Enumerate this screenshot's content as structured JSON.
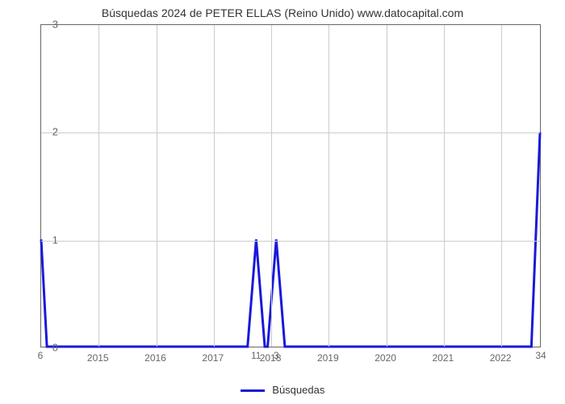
{
  "chart": {
    "type": "line",
    "title": "Búsquedas 2024 de PETER ELLAS (Reino Unido) www.datocapital.com",
    "title_fontsize": 14,
    "title_color": "#333333",
    "background_color": "#ffffff",
    "plot_border_color": "#666666",
    "grid_color": "#cccccc",
    "axis_label_color": "#666666",
    "axis_label_fontsize": 12,
    "y_axis": {
      "min": 0,
      "max": 3,
      "ticks": [
        0,
        1,
        2,
        3
      ]
    },
    "x_axis": {
      "min": 2014,
      "max": 2022.7,
      "ticks": [
        2015,
        2016,
        2017,
        2018,
        2019,
        2020,
        2021,
        2022
      ]
    },
    "series": {
      "name": "Búsquedas",
      "color": "#1919da",
      "line_width": 3,
      "data": [
        {
          "x": 2014.0,
          "y": 1.0,
          "label": "6",
          "label_pos": "below"
        },
        {
          "x": 2014.1,
          "y": 0.0
        },
        {
          "x": 2017.6,
          "y": 0.0
        },
        {
          "x": 2017.75,
          "y": 1.0,
          "label": "11",
          "label_pos": "below"
        },
        {
          "x": 2017.9,
          "y": 0.0
        },
        {
          "x": 2017.95,
          "y": 0.0
        },
        {
          "x": 2018.1,
          "y": 1.0,
          "label": "3",
          "label_pos": "below"
        },
        {
          "x": 2018.25,
          "y": 0.0
        },
        {
          "x": 2022.55,
          "y": 0.0
        },
        {
          "x": 2022.7,
          "y": 2.0,
          "label": "34",
          "label_pos": "below"
        }
      ]
    },
    "legend": {
      "label": "Búsquedas",
      "line_color": "#1919da"
    }
  }
}
